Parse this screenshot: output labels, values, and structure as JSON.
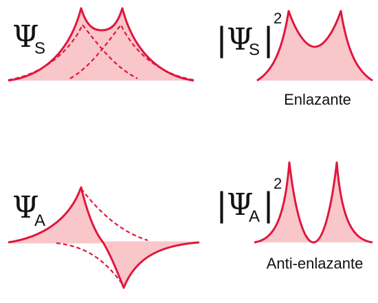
{
  "colors": {
    "curve": "#e0163e",
    "fill": "#f9c6c9",
    "text": "#111111"
  },
  "panels": {
    "psi_s": {
      "symbol": "Ψ",
      "subscript": "S"
    },
    "psi_s_squared": {
      "symbol": "Ψ",
      "subscript": "S",
      "exponent": "2",
      "caption": "Enlazante"
    },
    "psi_a": {
      "symbol": "Ψ",
      "subscript": "A"
    },
    "psi_a_squared": {
      "symbol": "Ψ",
      "subscript": "A",
      "exponent": "2",
      "caption": "Anti-enlazante"
    }
  }
}
